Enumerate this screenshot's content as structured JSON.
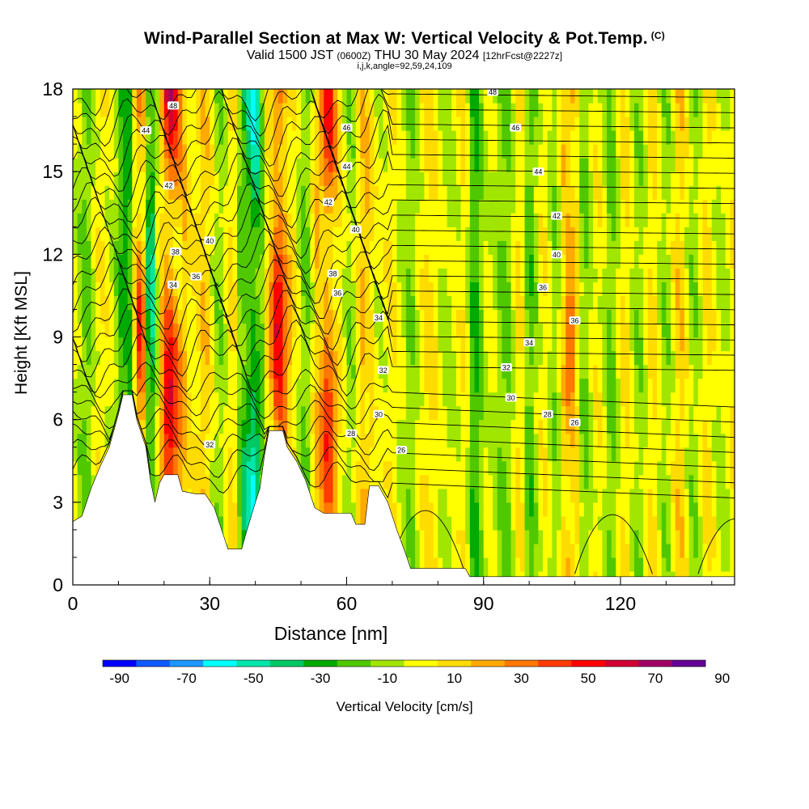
{
  "title": {
    "main": "Wind-Parallel Section at Max W: Vertical Velocity & Pot.Temp.",
    "copyright": "(C)",
    "valid_prefix": "Valid 1500 JST",
    "valid_z": "(0600Z)",
    "valid_date": "THU 30 May 2024",
    "forecast": "[12hrFcst@2227z]",
    "indices": "i,j,k,angle=92,59,24,109"
  },
  "colorbar": {
    "title": "Vertical Velocity [cm/s]",
    "tick_labels": [
      "-90",
      "-70",
      "-50",
      "-30",
      "-10",
      "10",
      "30",
      "50",
      "70",
      "90"
    ],
    "colors": [
      "#0000ff",
      "#0f5aff",
      "#1e96ff",
      "#00ffff",
      "#00e6aa",
      "#00c864",
      "#00aa00",
      "#50c800",
      "#a0e600",
      "#ffff00",
      "#ffdc00",
      "#ffaa00",
      "#ff7800",
      "#ff3c00",
      "#ff0000",
      "#d20032",
      "#a00064",
      "#640096"
    ]
  },
  "chart_data": {
    "type": "heatmap",
    "xlabel": "Distance [nm]",
    "ylabel": "Height [Kft MSL]",
    "xlim": [
      0,
      145
    ],
    "ylim": [
      0,
      18
    ],
    "x_ticks": [
      0,
      30,
      60,
      90,
      120
    ],
    "y_ticks": [
      0,
      3,
      6,
      9,
      12,
      15,
      18
    ],
    "x_tick_labels": [
      "0",
      "30",
      "60",
      "90",
      "120"
    ],
    "y_tick_labels": [
      "0",
      "3",
      "6",
      "9",
      "12",
      "15",
      "18"
    ],
    "field": "Vertical Velocity [cm/s]",
    "value_range": [
      -90,
      90
    ],
    "vertical_velocity_bands": [
      {
        "x": 0,
        "w": 5
      },
      {
        "x": 3,
        "w": -15
      },
      {
        "x": 6,
        "w": 10
      },
      {
        "x": 9,
        "w": 0
      },
      {
        "x": 12,
        "w": -35
      },
      {
        "x": 15,
        "w": 55
      },
      {
        "x": 17,
        "w": -55
      },
      {
        "x": 19,
        "w": 15
      },
      {
        "x": 21,
        "w": 60
      },
      {
        "x": 23,
        "w": 35
      },
      {
        "x": 26,
        "w": 5
      },
      {
        "x": 29,
        "w": 20
      },
      {
        "x": 32,
        "w": -10
      },
      {
        "x": 35,
        "w": 15
      },
      {
        "x": 38,
        "w": -35
      },
      {
        "x": 40,
        "w": -55
      },
      {
        "x": 42,
        "w": 0
      },
      {
        "x": 45,
        "w": 60
      },
      {
        "x": 48,
        "w": 15
      },
      {
        "x": 51,
        "w": -15
      },
      {
        "x": 54,
        "w": 25
      },
      {
        "x": 56,
        "w": 50
      },
      {
        "x": 58,
        "w": 15
      },
      {
        "x": 61,
        "w": -10
      },
      {
        "x": 64,
        "w": 25
      },
      {
        "x": 67,
        "w": 0
      },
      {
        "x": 70,
        "w": 10
      },
      {
        "x": 74,
        "w": -10
      },
      {
        "x": 78,
        "w": 15
      },
      {
        "x": 82,
        "w": -5
      },
      {
        "x": 86,
        "w": 10
      },
      {
        "x": 88,
        "w": -25
      },
      {
        "x": 91,
        "w": 5
      },
      {
        "x": 95,
        "w": -15
      },
      {
        "x": 98,
        "w": 15
      },
      {
        "x": 100,
        "w": -20
      },
      {
        "x": 103,
        "w": 10
      },
      {
        "x": 106,
        "w": -10
      },
      {
        "x": 109,
        "w": 40
      },
      {
        "x": 112,
        "w": -15
      },
      {
        "x": 115,
        "w": 10
      },
      {
        "x": 118,
        "w": -15
      },
      {
        "x": 121,
        "w": 15
      },
      {
        "x": 124,
        "w": -10
      },
      {
        "x": 127,
        "w": 15
      },
      {
        "x": 130,
        "w": -10
      },
      {
        "x": 133,
        "w": 20
      },
      {
        "x": 136,
        "w": -10
      },
      {
        "x": 139,
        "w": 15
      },
      {
        "x": 142,
        "w": -5
      },
      {
        "x": 145,
        "w": 10
      }
    ],
    "terrain_kft": [
      [
        0,
        2.3
      ],
      [
        2,
        2.5
      ],
      [
        4,
        3.5
      ],
      [
        6,
        4.3
      ],
      [
        8,
        5.0
      ],
      [
        10,
        6.2
      ],
      [
        11,
        6.9
      ],
      [
        13,
        6.9
      ],
      [
        14,
        6.0
      ],
      [
        16,
        5.0
      ],
      [
        17,
        3.8
      ],
      [
        18,
        3.0
      ],
      [
        19,
        3.7
      ],
      [
        20,
        4.0
      ],
      [
        23,
        4.0
      ],
      [
        24,
        3.4
      ],
      [
        27,
        3.3
      ],
      [
        29,
        3.3
      ],
      [
        31,
        2.8
      ],
      [
        33,
        1.8
      ],
      [
        34,
        1.3
      ],
      [
        37,
        1.3
      ],
      [
        38,
        1.9
      ],
      [
        40,
        3.0
      ],
      [
        41,
        3.5
      ],
      [
        42,
        4.7
      ],
      [
        43,
        5.6
      ],
      [
        46,
        5.6
      ],
      [
        47,
        5.0
      ],
      [
        49,
        4.5
      ],
      [
        51,
        3.8
      ],
      [
        53,
        2.8
      ],
      [
        55,
        2.6
      ],
      [
        61,
        2.6
      ],
      [
        62,
        2.2
      ],
      [
        64,
        2.2
      ],
      [
        65,
        3.6
      ],
      [
        67,
        3.6
      ],
      [
        69,
        3.0
      ],
      [
        71,
        2.0
      ],
      [
        73,
        1.1
      ],
      [
        74,
        0.6
      ],
      [
        86,
        0.6
      ],
      [
        87,
        0.3
      ],
      [
        145,
        0.3
      ]
    ],
    "theta_contour_labels": [
      "26",
      "28",
      "30",
      "32",
      "34",
      "36",
      "38",
      "40",
      "42",
      "44",
      "46",
      "48"
    ],
    "theta_labels_placed": [
      {
        "text": "48",
        "x": 22,
        "y": 17.4
      },
      {
        "text": "44",
        "x": 16,
        "y": 16.5
      },
      {
        "text": "46",
        "x": 60,
        "y": 16.6
      },
      {
        "text": "44",
        "x": 60,
        "y": 15.2
      },
      {
        "text": "42",
        "x": 21,
        "y": 14.5
      },
      {
        "text": "42",
        "x": 56,
        "y": 13.9
      },
      {
        "text": "40",
        "x": 30,
        "y": 12.5
      },
      {
        "text": "40",
        "x": 62,
        "y": 12.9
      },
      {
        "text": "38",
        "x": 22.5,
        "y": 12.1
      },
      {
        "text": "36",
        "x": 27,
        "y": 11.2
      },
      {
        "text": "34",
        "x": 22,
        "y": 10.9
      },
      {
        "text": "38",
        "x": 57,
        "y": 11.3
      },
      {
        "text": "36",
        "x": 58,
        "y": 10.6
      },
      {
        "text": "34",
        "x": 67,
        "y": 9.7
      },
      {
        "text": "32",
        "x": 68,
        "y": 7.8
      },
      {
        "text": "30",
        "x": 67,
        "y": 6.2
      },
      {
        "text": "28",
        "x": 61,
        "y": 5.5
      },
      {
        "text": "26",
        "x": 72,
        "y": 4.9
      },
      {
        "text": "48",
        "x": 92,
        "y": 17.9
      },
      {
        "text": "46",
        "x": 97,
        "y": 16.6
      },
      {
        "text": "44",
        "x": 102,
        "y": 15.0
      },
      {
        "text": "42",
        "x": 106,
        "y": 13.4
      },
      {
        "text": "40",
        "x": 106,
        "y": 12.0
      },
      {
        "text": "36",
        "x": 103,
        "y": 10.8
      },
      {
        "text": "36",
        "x": 110,
        "y": 9.6
      },
      {
        "text": "34",
        "x": 100,
        "y": 8.8
      },
      {
        "text": "32",
        "x": 95,
        "y": 7.9
      },
      {
        "text": "30",
        "x": 96,
        "y": 6.8
      },
      {
        "text": "28",
        "x": 104,
        "y": 6.2
      },
      {
        "text": "26",
        "x": 110,
        "y": 5.9
      },
      {
        "text": "32",
        "x": 30,
        "y": 5.1
      }
    ],
    "grid": false,
    "legend": "bottom colorbar"
  }
}
